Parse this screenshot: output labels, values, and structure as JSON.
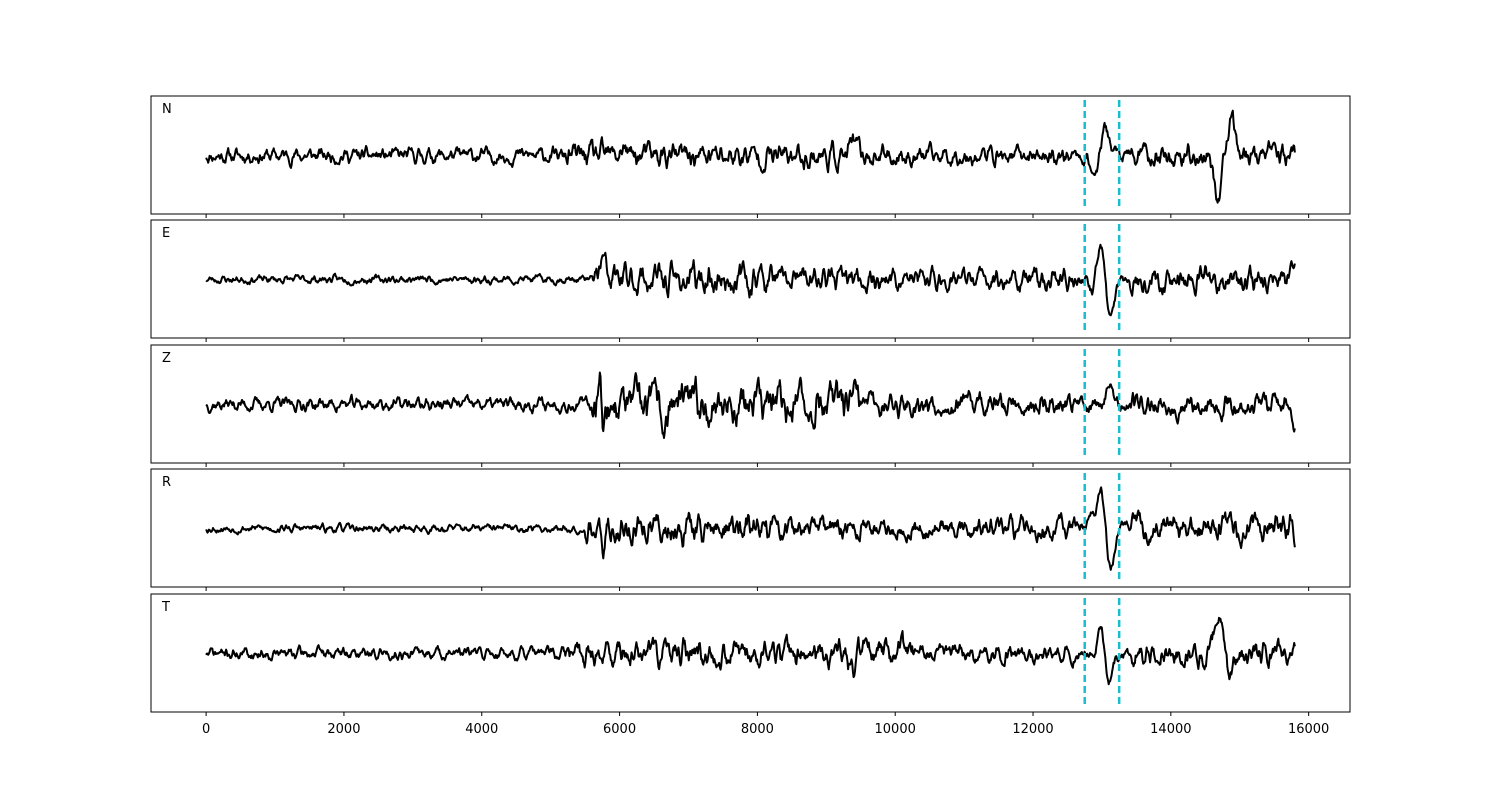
{
  "chart_data": {
    "type": "line",
    "xlim": [
      -800,
      16600
    ],
    "x_ticks": [
      0,
      2000,
      4000,
      6000,
      8000,
      10000,
      12000,
      14000,
      16000
    ],
    "x_tick_labels": [
      "0",
      "2000",
      "4000",
      "6000",
      "8000",
      "10000",
      "12000",
      "14000",
      "16000"
    ],
    "x_range": [
      0,
      15800
    ],
    "grid": false,
    "line_color": "#000000",
    "marker_color": "#17becf",
    "vertical_markers": [
      12750,
      13250
    ],
    "panels": [
      {
        "label": "N",
        "seed": 11,
        "noise": [
          [
            0,
            5200,
            0.11
          ],
          [
            5200,
            9400,
            0.18
          ],
          [
            9400,
            10300,
            0.15
          ],
          [
            10300,
            12600,
            0.13
          ],
          [
            12600,
            13400,
            0.12
          ],
          [
            13400,
            15800,
            0.17
          ]
        ],
        "events": [
          [
            6050,
            0.18,
            60
          ],
          [
            9400,
            0.28,
            70
          ],
          [
            13050,
            0.55,
            90
          ],
          [
            12900,
            -0.4,
            80
          ],
          [
            14700,
            -0.9,
            100
          ],
          [
            14850,
            0.7,
            110
          ]
        ]
      },
      {
        "label": "E",
        "seed": 23,
        "noise": [
          [
            0,
            5600,
            0.06
          ],
          [
            5600,
            8200,
            0.22
          ],
          [
            8200,
            12600,
            0.16
          ],
          [
            12600,
            13400,
            0.1
          ],
          [
            13400,
            15800,
            0.18
          ]
        ],
        "events": [
          [
            5750,
            0.35,
            60
          ],
          [
            13000,
            0.9,
            90
          ],
          [
            13100,
            -1.0,
            90
          ],
          [
            12850,
            -0.3,
            70
          ]
        ]
      },
      {
        "label": "Z",
        "seed": 37,
        "noise": [
          [
            0,
            5600,
            0.1
          ],
          [
            5600,
            9500,
            0.3
          ],
          [
            9500,
            12600,
            0.17
          ],
          [
            12600,
            13400,
            0.12
          ],
          [
            13400,
            15800,
            0.17
          ]
        ],
        "events": [
          [
            5720,
            1.2,
            40
          ],
          [
            5760,
            -0.9,
            40
          ],
          [
            6650,
            -0.4,
            60
          ],
          [
            13100,
            0.35,
            80
          ],
          [
            15800,
            -0.35,
            60
          ]
        ]
      },
      {
        "label": "R",
        "seed": 53,
        "noise": [
          [
            0,
            5500,
            0.06
          ],
          [
            5500,
            8200,
            0.23
          ],
          [
            8200,
            12600,
            0.16
          ],
          [
            12600,
            13400,
            0.1
          ],
          [
            13400,
            15800,
            0.2
          ]
        ],
        "events": [
          [
            5750,
            -0.45,
            60
          ],
          [
            13000,
            0.95,
            90
          ],
          [
            13100,
            -1.0,
            90
          ],
          [
            12850,
            0.3,
            70
          ]
        ]
      },
      {
        "label": "T",
        "seed": 71,
        "noise": [
          [
            0,
            5200,
            0.09
          ],
          [
            5200,
            9300,
            0.2
          ],
          [
            9300,
            10300,
            0.22
          ],
          [
            10300,
            12600,
            0.13
          ],
          [
            12600,
            13400,
            0.1
          ],
          [
            13400,
            15800,
            0.18
          ]
        ],
        "events": [
          [
            9400,
            -0.5,
            60
          ],
          [
            13000,
            0.55,
            80
          ],
          [
            13100,
            -0.6,
            80
          ],
          [
            14700,
            1.1,
            80
          ],
          [
            14850,
            -0.6,
            80
          ]
        ]
      }
    ]
  }
}
